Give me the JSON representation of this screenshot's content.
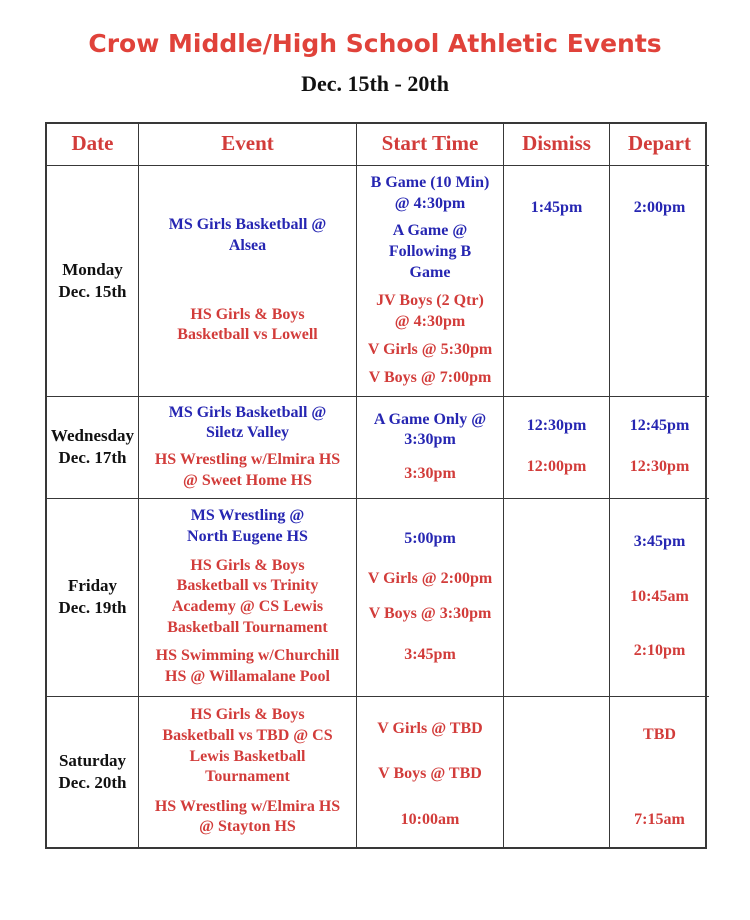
{
  "page": {
    "title": "Crow Middle/High School Athletic Events",
    "subtitle": "Dec. 15th - 20th"
  },
  "colors": {
    "title_red": "#e0423a",
    "red": "#d23c3a",
    "blue": "#2626b2",
    "text_black": "#111111",
    "border": "#383838"
  },
  "table": {
    "headers": [
      "Date",
      "Event",
      "Start Time",
      "Dismiss",
      "Depart"
    ],
    "rows": [
      {
        "date": "Monday\nDec. 15th",
        "event": [
          "MS Girls Basketball @\nAlsea",
          "HS Girls & Boys\nBasketball vs Lowell"
        ],
        "start": [
          "B Game (10 Min)\n@ 4:30pm",
          "A Game @\nFollowing B\nGame",
          "JV Boys (2 Qtr)\n@ 4:30pm",
          "V Girls @ 5:30pm",
          "V Boys @ 7:00pm"
        ],
        "dismiss": [
          "1:45pm"
        ],
        "depart": [
          "2:00pm"
        ]
      },
      {
        "date": "Wednesday\nDec. 17th",
        "event": [
          "MS Girls Basketball @\nSiletz Valley",
          "HS Wrestling w/Elmira HS\n@ Sweet Home HS"
        ],
        "start": [
          "A Game Only @\n3:30pm",
          "3:30pm"
        ],
        "dismiss": [
          "12:30pm",
          "12:00pm"
        ],
        "depart": [
          "12:45pm",
          "12:30pm"
        ]
      },
      {
        "date": "Friday\nDec. 19th",
        "event": [
          "MS Wrestling @\nNorth Eugene HS",
          "HS Girls & Boys\nBasketball vs Trinity\nAcademy @ CS Lewis\nBasketball Tournament",
          "HS Swimming w/Churchill\nHS @ Willamalane Pool"
        ],
        "start": [
          "5:00pm",
          "V Girls @ 2:00pm",
          "V Boys @ 3:30pm",
          "3:45pm"
        ],
        "dismiss": [],
        "depart": [
          "3:45pm",
          "10:45am",
          "2:10pm"
        ]
      },
      {
        "date": "Saturday\nDec. 20th",
        "event": [
          "HS Girls & Boys\nBasketball vs TBD @ CS\nLewis Basketball\nTournament",
          "HS Wrestling w/Elmira HS\n@ Stayton HS"
        ],
        "start": [
          "V Girls @ TBD",
          "V Boys @ TBD",
          "10:00am"
        ],
        "dismiss": [],
        "depart": [
          "TBD",
          "7:15am"
        ]
      }
    ]
  }
}
